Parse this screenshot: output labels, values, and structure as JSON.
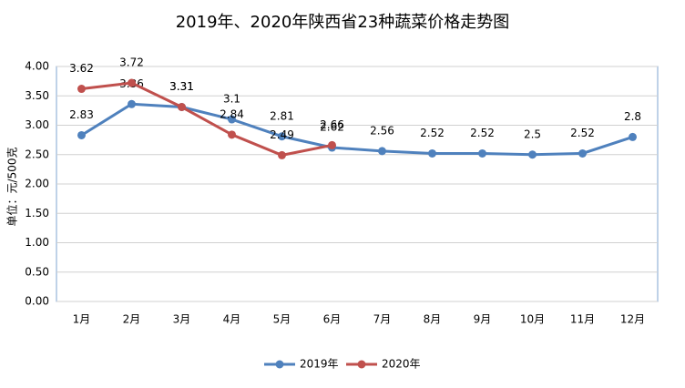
{
  "chart_data": {
    "type": "line",
    "title": "2019年、2020年陕西省23种蔬菜价格走势图",
    "y_label": "单位：元/500克",
    "categories": [
      "1月",
      "2月",
      "3月",
      "4月",
      "5月",
      "6月",
      "7月",
      "8月",
      "9月",
      "10月",
      "11月",
      "12月"
    ],
    "series": [
      {
        "name": "2019年",
        "color": "#4f81bd",
        "values": [
          2.83,
          3.36,
          3.31,
          3.1,
          2.81,
          2.62,
          2.56,
          2.52,
          2.52,
          2.5,
          2.52,
          2.8
        ]
      },
      {
        "name": "2020年",
        "color": "#c0504d",
        "values": [
          3.62,
          3.72,
          3.31,
          2.84,
          2.49,
          2.66,
          null,
          null,
          null,
          null,
          null,
          null
        ]
      }
    ],
    "ylim": [
      0,
      4
    ],
    "yticks": [
      {
        "value": 0,
        "label": "0.00"
      },
      {
        "value": 0.5,
        "label": "0.50"
      },
      {
        "value": 1,
        "label": "1.00"
      },
      {
        "value": 1.5,
        "label": "1.50"
      },
      {
        "value": 2,
        "label": "2.00"
      },
      {
        "value": 2.5,
        "label": "2.50"
      },
      {
        "value": 3,
        "label": "3.00"
      },
      {
        "value": 3.5,
        "label": "3.50"
      },
      {
        "value": 4,
        "label": "4.00"
      }
    ],
    "grid": true,
    "legend": "bottom"
  }
}
